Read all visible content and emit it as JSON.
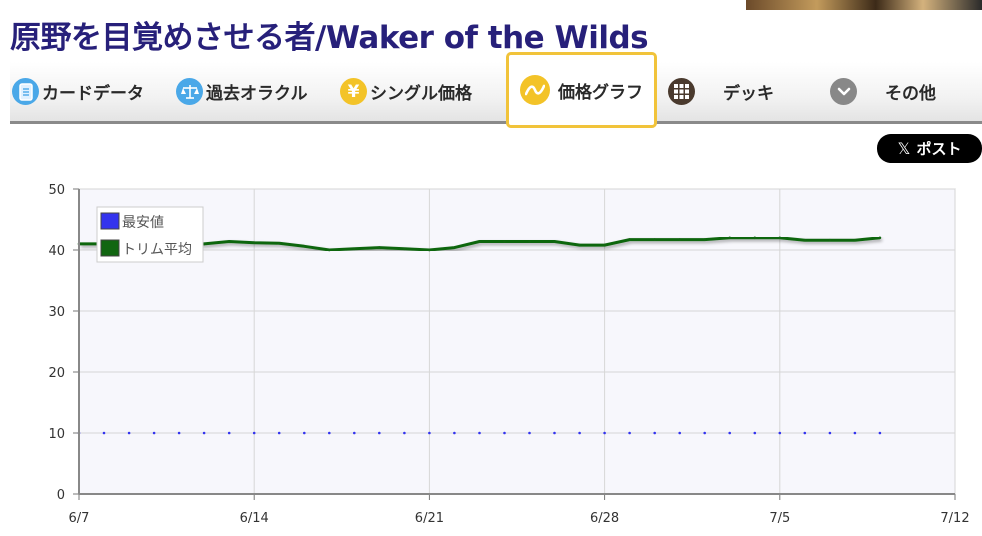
{
  "page": {
    "title": "原野を目覚めさせる者/Waker of the Wilds"
  },
  "tabs": [
    {
      "label": "カードデータ",
      "icon": "card-data-icon",
      "color": "#4aa8e8"
    },
    {
      "label": "過去オラクル",
      "icon": "oracle-icon",
      "color": "#4aa8e8"
    },
    {
      "label": "シングル価格",
      "icon": "yen-icon",
      "color": "#f3c328"
    },
    {
      "label": "価格グラフ",
      "icon": "price-graph-icon",
      "color": "#f3c328",
      "active": true
    },
    {
      "label": "デッキ",
      "icon": "deck-grid-icon",
      "color": "#4a3a2e"
    },
    {
      "label": "その他",
      "icon": "more-chevron-icon",
      "color": "#888888"
    }
  ],
  "social": {
    "post_label": "ポスト",
    "icon": "x-logo-icon"
  },
  "chart_data": {
    "type": "line",
    "x": [
      "6/7",
      "6/8",
      "6/9",
      "6/10",
      "6/11",
      "6/12",
      "6/13",
      "6/14",
      "6/15",
      "6/16",
      "6/17",
      "6/18",
      "6/19",
      "6/20",
      "6/21",
      "6/22",
      "6/23",
      "6/24",
      "6/25",
      "6/26",
      "6/27",
      "6/28",
      "6/29",
      "6/30",
      "7/1",
      "7/2",
      "7/3",
      "7/4",
      "7/5",
      "7/6",
      "7/7",
      "7/8",
      "7/9"
    ],
    "series": [
      {
        "name": "最安値",
        "color": "#3333ee",
        "values": [
          10,
          10,
          10,
          10,
          10,
          10,
          10,
          10,
          10,
          10,
          10,
          10,
          10,
          10,
          10,
          10,
          10,
          10,
          10,
          10,
          10,
          10,
          10,
          10,
          10,
          10,
          10,
          10,
          10,
          10,
          10,
          10,
          10
        ]
      },
      {
        "name": "トリム平均",
        "color": "#116611",
        "values": [
          41,
          41,
          41,
          40.9,
          41,
          41,
          41.4,
          41.2,
          41.1,
          40.6,
          40,
          40.2,
          40.4,
          40.2,
          40,
          40.4,
          41.4,
          41.4,
          41.4,
          41.4,
          40.8,
          40.8,
          41.7,
          41.7,
          41.7,
          41.7,
          42,
          42,
          42,
          41.6,
          41.6,
          41.6,
          42
        ]
      }
    ],
    "xticks": [
      "6/7",
      "6/14",
      "6/21",
      "6/28",
      "7/5",
      "7/12"
    ],
    "yticks": [
      0,
      10,
      20,
      30,
      40,
      50
    ],
    "ylim": [
      0,
      50
    ],
    "xlim": [
      "6/7",
      "7/12"
    ],
    "grid": true,
    "legend": "top-left"
  }
}
